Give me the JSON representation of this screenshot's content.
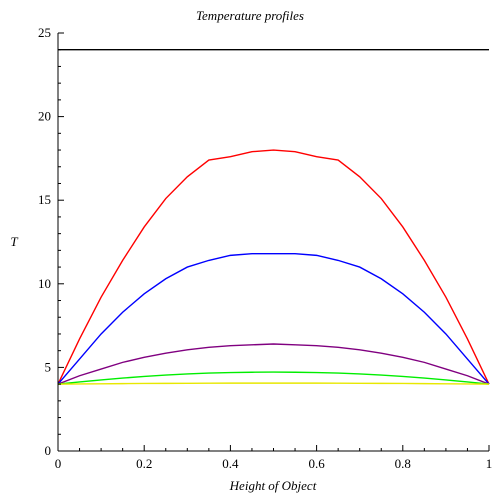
{
  "chart_data": {
    "type": "line",
    "title": "Temperature profiles",
    "xlabel": "Height of Object",
    "ylabel": "T",
    "xlim": [
      0,
      1
    ],
    "ylim": [
      0,
      25
    ],
    "x_ticks": [
      0,
      0.2,
      0.4,
      0.6,
      0.8,
      1
    ],
    "x_tick_labels": [
      "0",
      "0.2",
      "0.4",
      "0.6",
      "0.8",
      "1"
    ],
    "y_ticks": [
      0,
      5,
      10,
      15,
      20,
      25
    ],
    "y_tick_labels": [
      "0",
      "5",
      "10",
      "15",
      "20",
      "25"
    ],
    "grid": false,
    "legend": "none",
    "x": [
      0,
      0.05,
      0.1,
      0.15,
      0.2,
      0.25,
      0.3,
      0.35,
      0.4,
      0.45,
      0.5,
      0.55,
      0.6,
      0.65,
      0.7,
      0.75,
      0.8,
      0.85,
      0.9,
      0.95,
      1
    ],
    "series": [
      {
        "color": "#000000",
        "values": [
          24,
          24,
          24,
          24,
          24,
          24,
          24,
          24,
          24,
          24,
          24,
          24,
          24,
          24,
          24,
          24,
          24,
          24,
          24,
          24,
          24
        ]
      },
      {
        "color": "#ff0000",
        "values": [
          4,
          6.7,
          9.2,
          11.4,
          13.4,
          15.1,
          16.4,
          17.4,
          17.6,
          17.9,
          18.0,
          17.9,
          17.6,
          17.4,
          16.4,
          15.1,
          13.4,
          11.4,
          9.2,
          6.7,
          4
        ]
      },
      {
        "color": "#0000ff",
        "values": [
          4,
          5.5,
          7.0,
          8.3,
          9.4,
          10.3,
          11.0,
          11.4,
          11.7,
          11.8,
          11.8,
          11.8,
          11.7,
          11.4,
          11.0,
          10.3,
          9.4,
          8.3,
          7.0,
          5.5,
          4
        ]
      },
      {
        "color": "#800080",
        "values": [
          4,
          4.5,
          4.9,
          5.3,
          5.6,
          5.85,
          6.05,
          6.2,
          6.3,
          6.35,
          6.4,
          6.35,
          6.3,
          6.2,
          6.05,
          5.85,
          5.6,
          5.3,
          4.9,
          4.5,
          4
        ]
      },
      {
        "color": "#00ee00",
        "values": [
          4,
          4.13,
          4.25,
          4.36,
          4.46,
          4.54,
          4.61,
          4.66,
          4.69,
          4.71,
          4.72,
          4.71,
          4.69,
          4.66,
          4.61,
          4.54,
          4.46,
          4.36,
          4.25,
          4.13,
          4
        ]
      },
      {
        "color": "#e8e800",
        "values": [
          4,
          4.01,
          4.02,
          4.03,
          4.04,
          4.045,
          4.05,
          4.055,
          4.06,
          4.06,
          4.06,
          4.06,
          4.06,
          4.055,
          4.05,
          4.045,
          4.04,
          4.03,
          4.02,
          4.01,
          4
        ]
      }
    ]
  }
}
